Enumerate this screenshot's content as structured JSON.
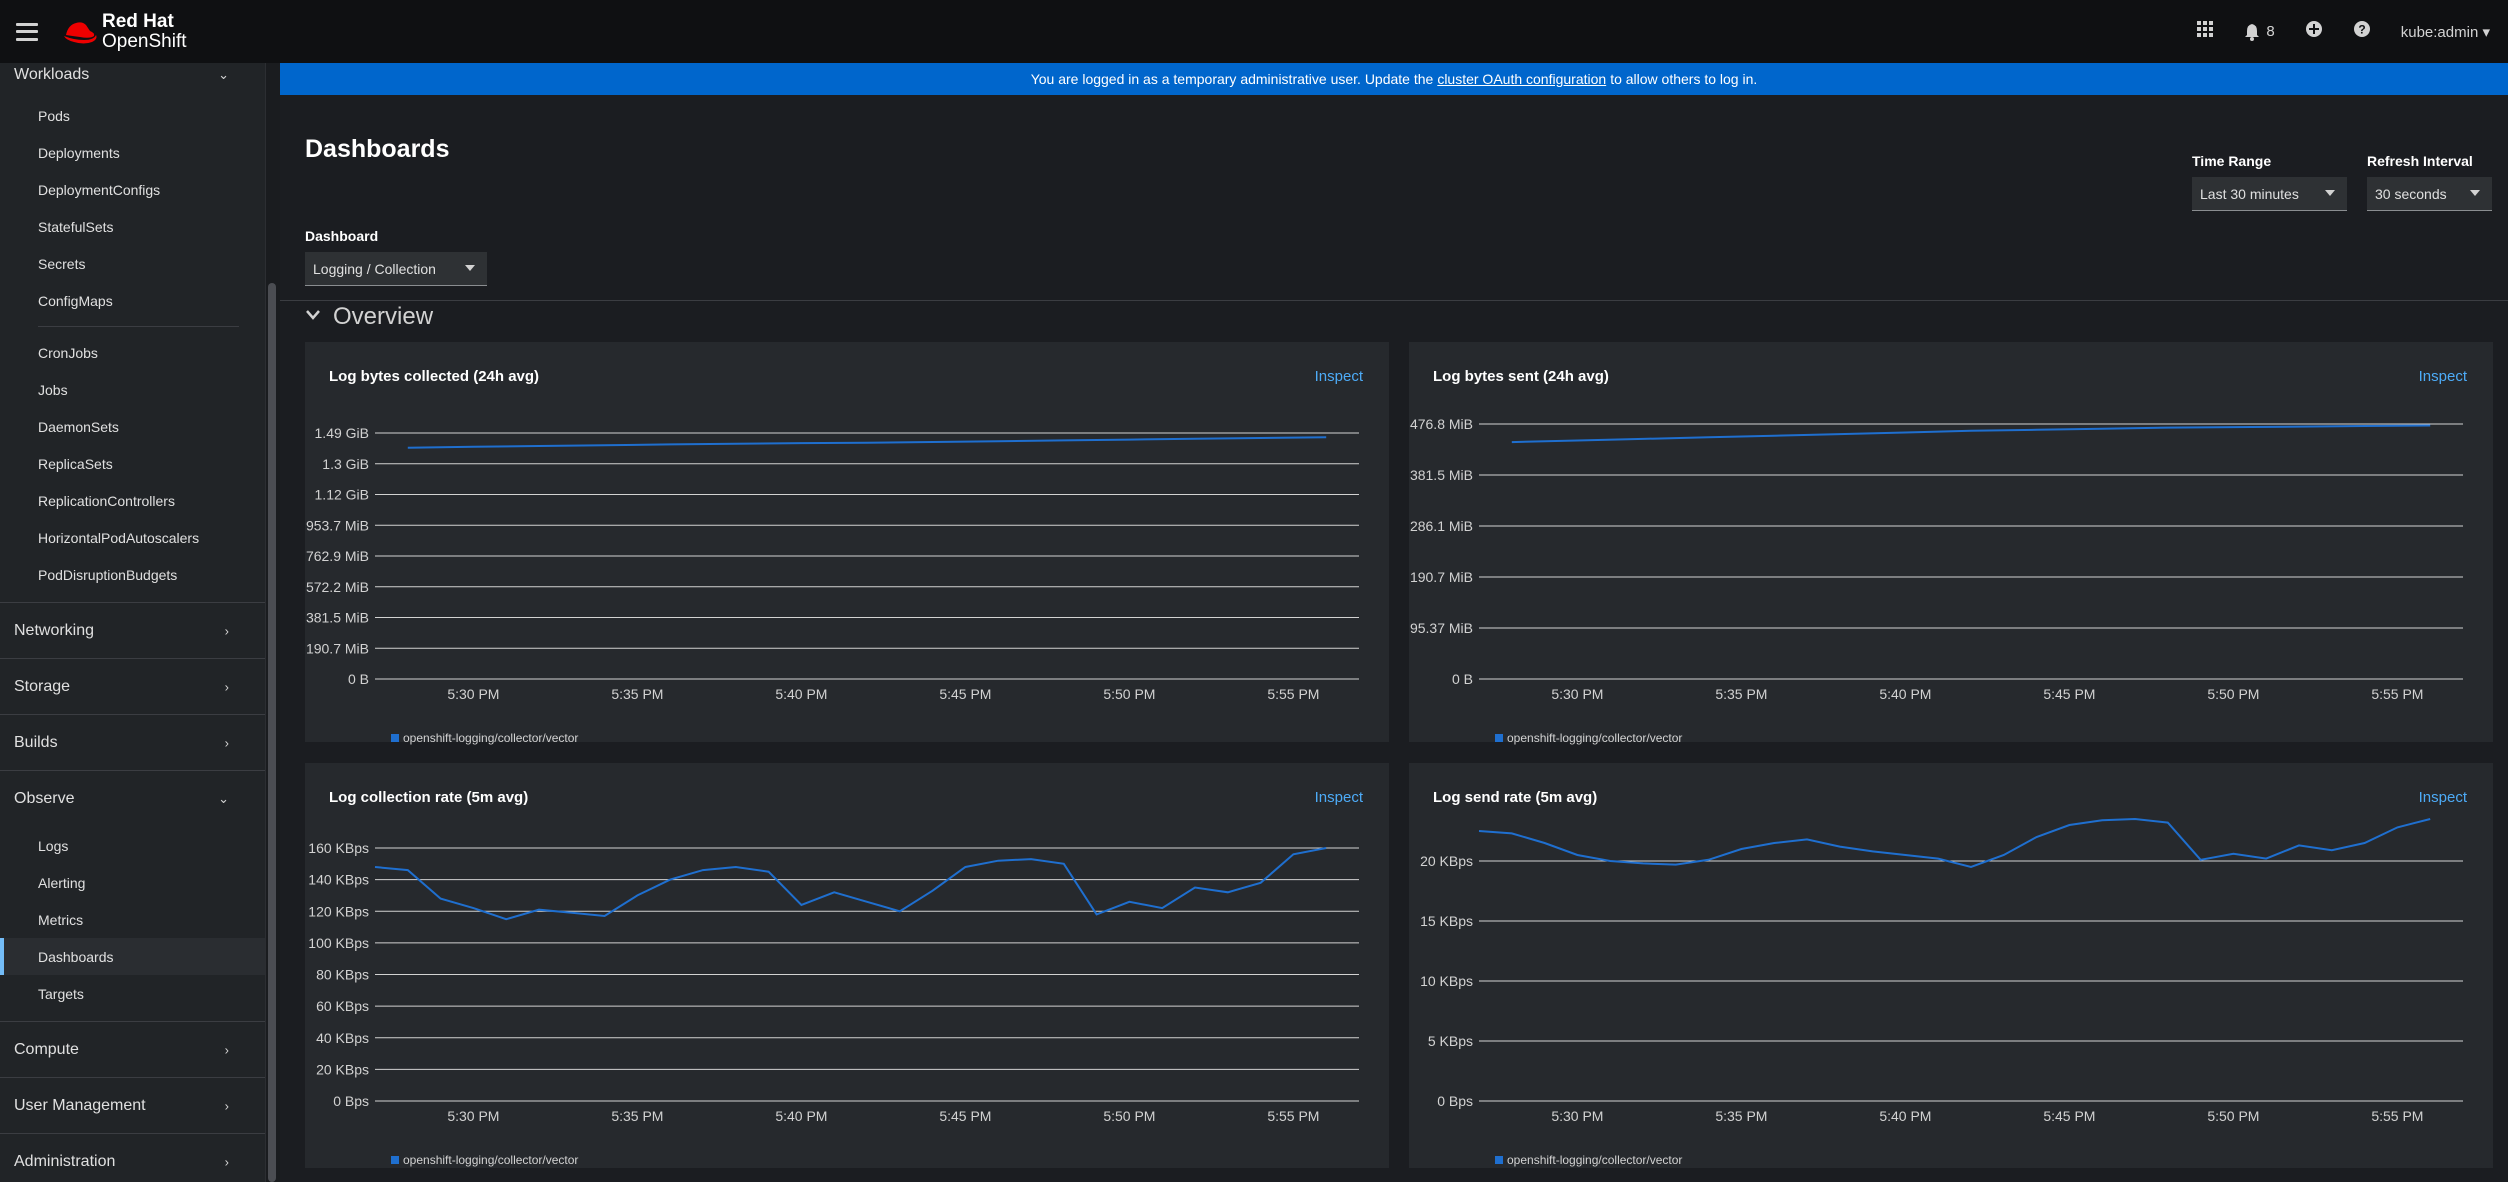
{
  "masthead": {
    "brand_line1": "Red Hat",
    "brand_line2": "OpenShift",
    "notifications_count": "8",
    "user": "kube:admin"
  },
  "sidebar": {
    "workloads": {
      "label": "Workloads",
      "items": [
        "Pods",
        "Deployments",
        "DeploymentConfigs",
        "StatefulSets",
        "Secrets",
        "ConfigMaps"
      ],
      "items2": [
        "CronJobs",
        "Jobs",
        "DaemonSets",
        "ReplicaSets",
        "ReplicationControllers",
        "HorizontalPodAutoscalers",
        "PodDisruptionBudgets"
      ]
    },
    "networking": "Networking",
    "storage": "Storage",
    "builds": "Builds",
    "observe": {
      "label": "Observe",
      "items": [
        "Logs",
        "Alerting",
        "Metrics",
        "Dashboards",
        "Targets"
      ]
    },
    "compute": "Compute",
    "user_management": "User Management",
    "administration": "Administration"
  },
  "banner": {
    "prefix": "You are logged in as a temporary administrative user. Update the",
    "link": "cluster OAuth configuration",
    "suffix": "to allow others to log in."
  },
  "page": {
    "title": "Dashboards",
    "dashboard_label": "Dashboard",
    "dashboard_value": "Logging / Collection",
    "time_range_label": "Time Range",
    "time_range_value": "Last 30 minutes",
    "refresh_label": "Refresh Interval",
    "refresh_value": "30 seconds",
    "section": "Overview",
    "inspect": "Inspect"
  },
  "colors": {
    "series": "#1f6fcf",
    "accent": "#0066cc",
    "link": "#4dabf7"
  },
  "chart_data": [
    {
      "type": "line",
      "title": "Log bytes collected (24h avg)",
      "x": [
        "5:28 PM",
        "5:30 PM",
        "5:32 PM",
        "5:34 PM",
        "5:36 PM",
        "5:38 PM",
        "5:40 PM",
        "5:42 PM",
        "5:44 PM",
        "5:46 PM",
        "5:48 PM",
        "5:50 PM",
        "5:52 PM",
        "5:54 PM",
        "5:56 PM"
      ],
      "xticks": [
        "5:30 PM",
        "5:35 PM",
        "5:40 PM",
        "5:45 PM",
        "5:50 PM",
        "5:55 PM"
      ],
      "yticks": [
        "1.49 GiB",
        "1.3 GiB",
        "1.12 GiB",
        "953.7 MiB",
        "762.9 MiB",
        "572.2 MiB",
        "381.5 MiB",
        "190.7 MiB",
        "0 B"
      ],
      "ylim_mib": [
        0,
        1525.9
      ],
      "series": [
        {
          "name": "openshift-logging/collector/vector",
          "values_mib": [
            1435,
            1440,
            1445,
            1450,
            1455,
            1459,
            1463,
            1466,
            1470,
            1475,
            1480,
            1485,
            1490,
            1495,
            1500
          ]
        }
      ]
    },
    {
      "type": "line",
      "title": "Log bytes sent (24h avg)",
      "x": [
        "5:28 PM",
        "5:30 PM",
        "5:32 PM",
        "5:34 PM",
        "5:36 PM",
        "5:38 PM",
        "5:40 PM",
        "5:42 PM",
        "5:44 PM",
        "5:46 PM",
        "5:48 PM",
        "5:50 PM",
        "5:52 PM",
        "5:54 PM",
        "5:56 PM"
      ],
      "xticks": [
        "5:30 PM",
        "5:35 PM",
        "5:40 PM",
        "5:45 PM",
        "5:50 PM",
        "5:55 PM"
      ],
      "yticks": [
        "476.8 MiB",
        "381.5 MiB",
        "286.1 MiB",
        "190.7 MiB",
        "95.37 MiB",
        "0 B"
      ],
      "ylim_mib": [
        0,
        476.8
      ],
      "series": [
        {
          "name": "openshift-logging/collector/vector",
          "values_mib": [
            443,
            446,
            449,
            452,
            455,
            458,
            461,
            464,
            466,
            468,
            470,
            471,
            472,
            473,
            474
          ]
        }
      ]
    },
    {
      "type": "line",
      "title": "Log collection rate (5m avg)",
      "x": [
        "5:27 PM",
        "5:28 PM",
        "5:29 PM",
        "5:30 PM",
        "5:31 PM",
        "5:32 PM",
        "5:33 PM",
        "5:34 PM",
        "5:35 PM",
        "5:36 PM",
        "5:37 PM",
        "5:38 PM",
        "5:39 PM",
        "5:40 PM",
        "5:41 PM",
        "5:42 PM",
        "5:43 PM",
        "5:44 PM",
        "5:45 PM",
        "5:46 PM",
        "5:47 PM",
        "5:48 PM",
        "5:49 PM",
        "5:50 PM",
        "5:51 PM",
        "5:52 PM",
        "5:53 PM",
        "5:54 PM",
        "5:55 PM",
        "5:56 PM"
      ],
      "xticks": [
        "5:30 PM",
        "5:35 PM",
        "5:40 PM",
        "5:45 PM",
        "5:50 PM",
        "5:55 PM"
      ],
      "yticks": [
        "160 KBps",
        "140 KBps",
        "120 KBps",
        "100 KBps",
        "80 KBps",
        "60 KBps",
        "40 KBps",
        "20 KBps",
        "0 Bps"
      ],
      "ylim_kbps": [
        0,
        160
      ],
      "series": [
        {
          "name": "openshift-logging/collector/vector",
          "values_kbps": [
            148,
            146,
            128,
            122,
            115,
            121,
            119,
            117,
            130,
            140,
            146,
            148,
            145,
            124,
            132,
            126,
            120,
            133,
            148,
            152,
            153,
            150,
            118,
            126,
            122,
            135,
            132,
            138,
            156,
            160
          ]
        }
      ]
    },
    {
      "type": "line",
      "title": "Log send rate (5m avg)",
      "x": [
        "5:27 PM",
        "5:28 PM",
        "5:29 PM",
        "5:30 PM",
        "5:31 PM",
        "5:32 PM",
        "5:33 PM",
        "5:34 PM",
        "5:35 PM",
        "5:36 PM",
        "5:37 PM",
        "5:38 PM",
        "5:39 PM",
        "5:40 PM",
        "5:41 PM",
        "5:42 PM",
        "5:43 PM",
        "5:44 PM",
        "5:45 PM",
        "5:46 PM",
        "5:47 PM",
        "5:48 PM",
        "5:49 PM",
        "5:50 PM",
        "5:51 PM",
        "5:52 PM",
        "5:53 PM",
        "5:54 PM",
        "5:55 PM",
        "5:56 PM"
      ],
      "xticks": [
        "5:30 PM",
        "5:35 PM",
        "5:40 PM",
        "5:45 PM",
        "5:50 PM",
        "5:55 PM"
      ],
      "yticks": [
        "20 KBps",
        "15 KBps",
        "10 KBps",
        "5 KBps",
        "0 Bps"
      ],
      "ylim_kbps": [
        0,
        24
      ],
      "series": [
        {
          "name": "openshift-logging/collector/vector",
          "values_kbps": [
            22.5,
            22.3,
            21.5,
            20.5,
            20.0,
            19.8,
            19.7,
            20.1,
            21.0,
            21.5,
            21.8,
            21.2,
            20.8,
            20.5,
            20.2,
            19.5,
            20.5,
            22.0,
            23.0,
            23.4,
            23.5,
            23.2,
            20.1,
            20.6,
            20.2,
            21.3,
            20.9,
            21.5,
            22.8,
            23.5
          ]
        }
      ]
    }
  ]
}
